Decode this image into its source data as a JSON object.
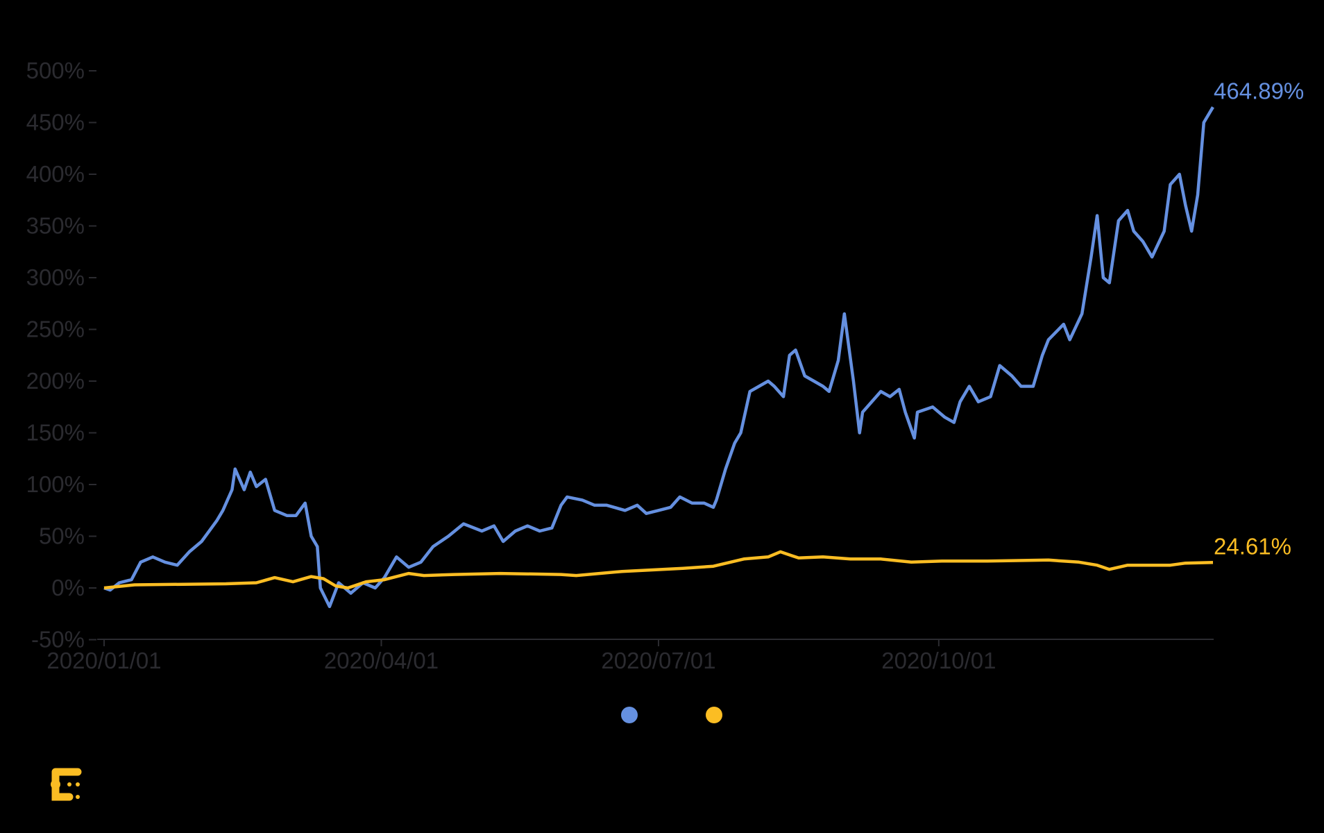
{
  "chart_data": {
    "type": "line",
    "title": "",
    "xlabel": "",
    "ylabel": "",
    "ylim": [
      -50,
      500
    ],
    "xlim": [
      "2020-01-01",
      "2020-12-30"
    ],
    "yticks": [
      "-50%",
      "0%",
      "50%",
      "100%",
      "150%",
      "200%",
      "250%",
      "300%",
      "350%",
      "400%",
      "450%",
      "500%"
    ],
    "ytick_values": [
      -50,
      0,
      50,
      100,
      150,
      200,
      250,
      300,
      350,
      400,
      450,
      500
    ],
    "xticks": [
      "2020/01/01",
      "2020/04/01",
      "2020/07/01",
      "2020/10/01"
    ],
    "xtick_dates": [
      "2020-01-01",
      "2020-04-01",
      "2020-07-01",
      "2020-10-01"
    ],
    "grid": false,
    "legend": "bottom-center",
    "series": [
      {
        "color": "#6590e0",
        "end_label": "464.89%",
        "points": [
          [
            "2020-01-01",
            0
          ],
          [
            "2020-01-03",
            -2
          ],
          [
            "2020-01-06",
            5
          ],
          [
            "2020-01-10",
            8
          ],
          [
            "2020-01-13",
            25
          ],
          [
            "2020-01-17",
            30
          ],
          [
            "2020-01-21",
            25
          ],
          [
            "2020-01-25",
            22
          ],
          [
            "2020-01-29",
            35
          ],
          [
            "2020-02-02",
            45
          ],
          [
            "2020-02-07",
            65
          ],
          [
            "2020-02-09",
            75
          ],
          [
            "2020-02-12",
            95
          ],
          [
            "2020-02-13",
            115
          ],
          [
            "2020-02-16",
            95
          ],
          [
            "2020-02-18",
            112
          ],
          [
            "2020-02-20",
            98
          ],
          [
            "2020-02-23",
            105
          ],
          [
            "2020-02-26",
            75
          ],
          [
            "2020-03-01",
            70
          ],
          [
            "2020-03-04",
            70
          ],
          [
            "2020-03-07",
            82
          ],
          [
            "2020-03-09",
            50
          ],
          [
            "2020-03-11",
            40
          ],
          [
            "2020-03-12",
            0
          ],
          [
            "2020-03-15",
            -18
          ],
          [
            "2020-03-18",
            5
          ],
          [
            "2020-03-22",
            -5
          ],
          [
            "2020-03-26",
            5
          ],
          [
            "2020-03-30",
            0
          ],
          [
            "2020-04-02",
            10
          ],
          [
            "2020-04-06",
            30
          ],
          [
            "2020-04-10",
            20
          ],
          [
            "2020-04-14",
            25
          ],
          [
            "2020-04-18",
            40
          ],
          [
            "2020-04-23",
            50
          ],
          [
            "2020-04-28",
            62
          ],
          [
            "2020-05-04",
            55
          ],
          [
            "2020-05-08",
            60
          ],
          [
            "2020-05-11",
            45
          ],
          [
            "2020-05-15",
            55
          ],
          [
            "2020-05-19",
            60
          ],
          [
            "2020-05-23",
            55
          ],
          [
            "2020-05-27",
            58
          ],
          [
            "2020-05-30",
            80
          ],
          [
            "2020-06-01",
            88
          ],
          [
            "2020-06-06",
            85
          ],
          [
            "2020-06-10",
            80
          ],
          [
            "2020-06-14",
            80
          ],
          [
            "2020-06-20",
            75
          ],
          [
            "2020-06-24",
            80
          ],
          [
            "2020-06-27",
            72
          ],
          [
            "2020-07-01",
            75
          ],
          [
            "2020-07-05",
            78
          ],
          [
            "2020-07-08",
            88
          ],
          [
            "2020-07-12",
            82
          ],
          [
            "2020-07-16",
            82
          ],
          [
            "2020-07-19",
            78
          ],
          [
            "2020-07-20",
            85
          ],
          [
            "2020-07-23",
            115
          ],
          [
            "2020-07-26",
            140
          ],
          [
            "2020-07-28",
            150
          ],
          [
            "2020-07-31",
            190
          ],
          [
            "2020-08-03",
            195
          ],
          [
            "2020-08-06",
            200
          ],
          [
            "2020-08-08",
            195
          ],
          [
            "2020-08-11",
            185
          ],
          [
            "2020-08-13",
            225
          ],
          [
            "2020-08-15",
            230
          ],
          [
            "2020-08-18",
            205
          ],
          [
            "2020-08-21",
            200
          ],
          [
            "2020-08-24",
            195
          ],
          [
            "2020-08-26",
            190
          ],
          [
            "2020-08-29",
            220
          ],
          [
            "2020-08-31",
            265
          ],
          [
            "2020-09-03",
            200
          ],
          [
            "2020-09-05",
            150
          ],
          [
            "2020-09-06",
            170
          ],
          [
            "2020-09-09",
            180
          ],
          [
            "2020-09-12",
            190
          ],
          [
            "2020-09-15",
            185
          ],
          [
            "2020-09-18",
            192
          ],
          [
            "2020-09-20",
            170
          ],
          [
            "2020-09-23",
            145
          ],
          [
            "2020-09-24",
            170
          ],
          [
            "2020-09-29",
            175
          ],
          [
            "2020-10-03",
            165
          ],
          [
            "2020-10-06",
            160
          ],
          [
            "2020-10-08",
            180
          ],
          [
            "2020-10-11",
            195
          ],
          [
            "2020-10-14",
            180
          ],
          [
            "2020-10-18",
            185
          ],
          [
            "2020-10-21",
            215
          ],
          [
            "2020-10-25",
            205
          ],
          [
            "2020-10-28",
            195
          ],
          [
            "2020-11-01",
            195
          ],
          [
            "2020-11-04",
            225
          ],
          [
            "2020-11-06",
            240
          ],
          [
            "2020-11-11",
            255
          ],
          [
            "2020-11-13",
            240
          ],
          [
            "2020-11-17",
            265
          ],
          [
            "2020-11-20",
            320
          ],
          [
            "2020-11-22",
            360
          ],
          [
            "2020-11-24",
            300
          ],
          [
            "2020-11-26",
            295
          ],
          [
            "2020-11-29",
            355
          ],
          [
            "2020-12-02",
            365
          ],
          [
            "2020-12-04",
            345
          ],
          [
            "2020-12-07",
            335
          ],
          [
            "2020-12-10",
            320
          ],
          [
            "2020-12-14",
            345
          ],
          [
            "2020-12-16",
            390
          ],
          [
            "2020-12-19",
            400
          ],
          [
            "2020-12-21",
            370
          ],
          [
            "2020-12-23",
            345
          ],
          [
            "2020-12-25",
            380
          ],
          [
            "2020-12-27",
            450
          ],
          [
            "2020-12-30",
            464.89
          ]
        ]
      },
      {
        "color": "#fbbd23",
        "end_label": "24.61%",
        "points": [
          [
            "2020-01-01",
            0
          ],
          [
            "2020-01-11",
            3
          ],
          [
            "2020-02-10",
            4
          ],
          [
            "2020-02-20",
            5
          ],
          [
            "2020-02-26",
            10
          ],
          [
            "2020-03-03",
            6
          ],
          [
            "2020-03-09",
            11
          ],
          [
            "2020-03-13",
            9
          ],
          [
            "2020-03-17",
            2
          ],
          [
            "2020-03-21",
            0
          ],
          [
            "2020-03-27",
            6
          ],
          [
            "2020-04-02",
            8
          ],
          [
            "2020-04-10",
            14
          ],
          [
            "2020-04-15",
            12
          ],
          [
            "2020-04-25",
            13
          ],
          [
            "2020-05-10",
            14
          ],
          [
            "2020-05-30",
            13
          ],
          [
            "2020-06-04",
            12
          ],
          [
            "2020-06-19",
            16
          ],
          [
            "2020-07-09",
            19
          ],
          [
            "2020-07-19",
            21
          ],
          [
            "2020-07-29",
            28
          ],
          [
            "2020-08-06",
            30
          ],
          [
            "2020-08-10",
            35
          ],
          [
            "2020-08-16",
            29
          ],
          [
            "2020-08-24",
            30
          ],
          [
            "2020-09-02",
            28
          ],
          [
            "2020-09-12",
            28
          ],
          [
            "2020-09-22",
            25
          ],
          [
            "2020-10-02",
            26
          ],
          [
            "2020-10-17",
            26
          ],
          [
            "2020-11-06",
            27
          ],
          [
            "2020-11-16",
            25
          ],
          [
            "2020-11-22",
            22
          ],
          [
            "2020-11-26",
            18
          ],
          [
            "2020-12-02",
            22
          ],
          [
            "2020-12-16",
            22
          ],
          [
            "2020-12-21",
            24
          ],
          [
            "2020-12-30",
            24.61
          ]
        ]
      }
    ]
  },
  "logo": {
    "color": "#fbbd23"
  }
}
